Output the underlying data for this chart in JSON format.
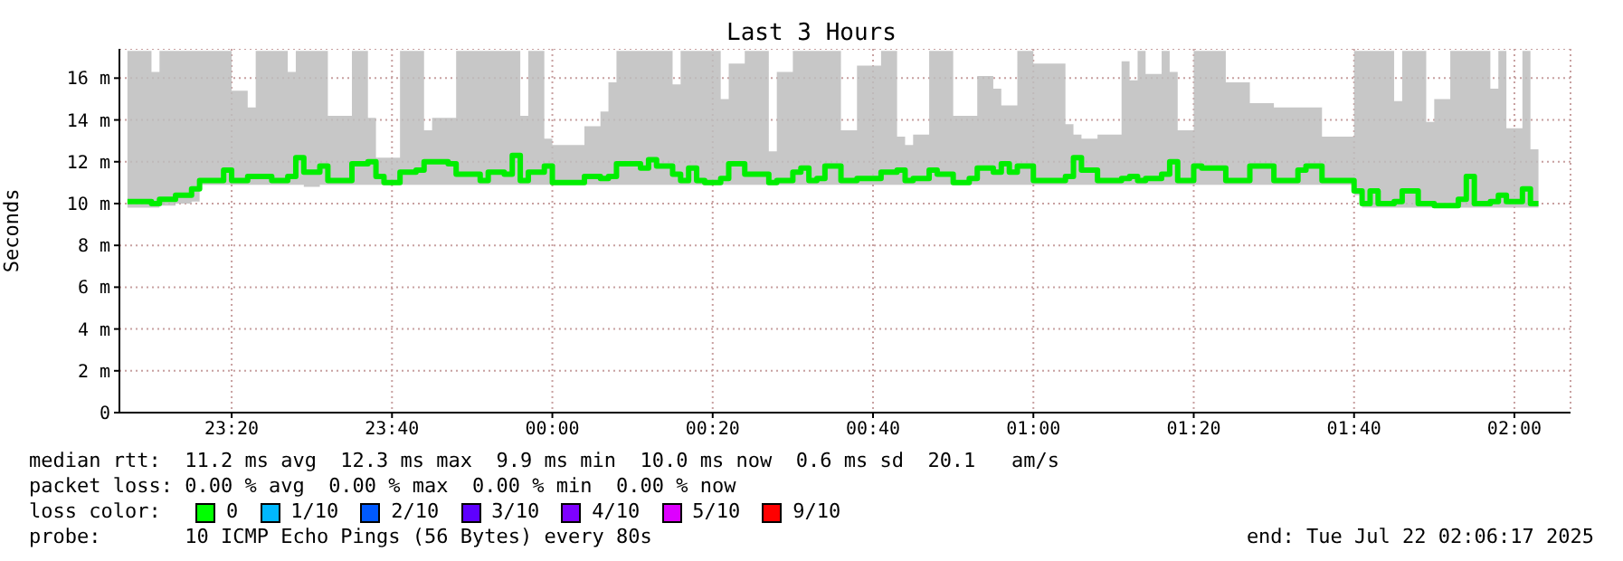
{
  "chart_data": {
    "type": "step",
    "title": "Last 3 Hours",
    "ylabel": "Seconds",
    "xlim": [
      "2025-07-21T23:06",
      "2025-07-22T02:07"
    ],
    "xticks": [
      {
        "value": "2025-07-21T23:20",
        "label": "23:20"
      },
      {
        "value": "2025-07-21T23:40",
        "label": "23:40"
      },
      {
        "value": "2025-07-22T00:00",
        "label": "00:00"
      },
      {
        "value": "2025-07-22T00:20",
        "label": "00:20"
      },
      {
        "value": "2025-07-22T00:40",
        "label": "00:40"
      },
      {
        "value": "2025-07-22T01:00",
        "label": "01:00"
      },
      {
        "value": "2025-07-22T01:20",
        "label": "01:20"
      },
      {
        "value": "2025-07-22T01:40",
        "label": "01:40"
      },
      {
        "value": "2025-07-22T02:00",
        "label": "02:00"
      }
    ],
    "ylim": [
      0,
      17.4
    ],
    "yticks": [
      0,
      {
        "value": 2,
        "label": "2 m"
      },
      {
        "value": 4,
        "label": "4 m"
      },
      {
        "value": 6,
        "label": "6 m"
      },
      {
        "value": 8,
        "label": "8 m"
      },
      {
        "value": 10,
        "label": "10 m"
      },
      {
        "value": 12,
        "label": "12 m"
      },
      {
        "value": 14,
        "label": "14 m"
      },
      {
        "value": 16,
        "label": "16 m"
      }
    ],
    "grid": true,
    "marker": "none",
    "line_style": "solid",
    "x": [
      "2025-07-21T23:07",
      "2025-07-21T23:10",
      "2025-07-21T23:11",
      "2025-07-21T23:13",
      "2025-07-21T23:15",
      "2025-07-21T23:16",
      "2025-07-21T23:19",
      "2025-07-21T23:20",
      "2025-07-21T23:22",
      "2025-07-21T23:23",
      "2025-07-21T23:25",
      "2025-07-21T23:27",
      "2025-07-21T23:28",
      "2025-07-21T23:29",
      "2025-07-21T23:31",
      "2025-07-21T23:32",
      "2025-07-21T23:35",
      "2025-07-21T23:37",
      "2025-07-21T23:38",
      "2025-07-21T23:39",
      "2025-07-21T23:41",
      "2025-07-21T23:43",
      "2025-07-21T23:44",
      "2025-07-21T23:45",
      "2025-07-21T23:47",
      "2025-07-21T23:48",
      "2025-07-21T23:51",
      "2025-07-21T23:52",
      "2025-07-21T23:54",
      "2025-07-21T23:55",
      "2025-07-21T23:56",
      "2025-07-21T23:57",
      "2025-07-21T23:59",
      "2025-07-22T00:00",
      "2025-07-22T00:04",
      "2025-07-22T00:06",
      "2025-07-22T00:07",
      "2025-07-22T00:08",
      "2025-07-22T00:11",
      "2025-07-22T00:12",
      "2025-07-22T00:13",
      "2025-07-22T00:15",
      "2025-07-22T00:16",
      "2025-07-22T00:17",
      "2025-07-22T00:18",
      "2025-07-22T00:19",
      "2025-07-22T00:21",
      "2025-07-22T00:22",
      "2025-07-22T00:24",
      "2025-07-22T00:25",
      "2025-07-22T00:27",
      "2025-07-22T00:28",
      "2025-07-22T00:30",
      "2025-07-22T00:31",
      "2025-07-22T00:32",
      "2025-07-22T00:33",
      "2025-07-22T00:34",
      "2025-07-22T00:36",
      "2025-07-22T00:38",
      "2025-07-22T00:41",
      "2025-07-22T00:43",
      "2025-07-22T00:44",
      "2025-07-22T00:45",
      "2025-07-22T00:47",
      "2025-07-22T00:48",
      "2025-07-22T00:50",
      "2025-07-22T00:52",
      "2025-07-22T00:53",
      "2025-07-22T00:55",
      "2025-07-22T00:56",
      "2025-07-22T00:57",
      "2025-07-22T00:58",
      "2025-07-22T01:00",
      "2025-07-22T01:04",
      "2025-07-22T01:05",
      "2025-07-22T01:06",
      "2025-07-22T01:08",
      "2025-07-22T01:11",
      "2025-07-22T01:12",
      "2025-07-22T01:13",
      "2025-07-22T01:14",
      "2025-07-22T01:16",
      "2025-07-22T01:17",
      "2025-07-22T01:18",
      "2025-07-22T01:20",
      "2025-07-22T01:21",
      "2025-07-22T01:24",
      "2025-07-22T01:27",
      "2025-07-22T01:30",
      "2025-07-22T01:33",
      "2025-07-22T01:34",
      "2025-07-22T01:36",
      "2025-07-22T01:40",
      "2025-07-22T01:41",
      "2025-07-22T01:42",
      "2025-07-22T01:43",
      "2025-07-22T01:45",
      "2025-07-22T01:46",
      "2025-07-22T01:48",
      "2025-07-22T01:49",
      "2025-07-22T01:50",
      "2025-07-22T01:52",
      "2025-07-22T01:53",
      "2025-07-22T01:54",
      "2025-07-22T01:55",
      "2025-07-22T01:57",
      "2025-07-22T01:58",
      "2025-07-22T01:59",
      "2025-07-22T02:01",
      "2025-07-22T02:02",
      "2025-07-22T02:03"
    ],
    "series": [
      {
        "color": "#00ee00",
        "values": [
          10.1,
          10.0,
          10.2,
          10.4,
          10.7,
          11.1,
          11.6,
          11.1,
          11.3,
          11.3,
          11.1,
          11.3,
          12.2,
          11.5,
          11.8,
          11.1,
          11.9,
          12.0,
          11.3,
          11.0,
          11.5,
          11.6,
          12.0,
          12.0,
          11.9,
          11.4,
          11.1,
          11.5,
          11.4,
          12.3,
          11.1,
          11.5,
          11.8,
          11.0,
          11.3,
          11.2,
          11.3,
          11.9,
          11.7,
          12.1,
          11.8,
          11.4,
          11.1,
          11.7,
          11.1,
          11.0,
          11.2,
          11.9,
          11.4,
          11.4,
          11.0,
          11.1,
          11.5,
          11.7,
          11.1,
          11.2,
          11.8,
          11.1,
          11.2,
          11.5,
          11.6,
          11.1,
          11.2,
          11.6,
          11.4,
          11.0,
          11.2,
          11.7,
          11.5,
          11.9,
          11.5,
          11.8,
          11.1,
          11.3,
          12.2,
          11.6,
          11.1,
          11.2,
          11.3,
          11.1,
          11.2,
          11.4,
          12.0,
          11.1,
          11.8,
          11.7,
          11.1,
          11.8,
          11.1,
          11.6,
          11.8,
          11.1,
          10.6,
          10.0,
          10.6,
          10.0,
          10.1,
          10.6,
          10.0,
          10.0,
          9.9,
          9.9,
          10.2,
          11.3,
          10.0,
          10.1,
          10.4,
          10.1,
          10.7,
          10.0,
          10.0
        ],
        "lower": [
          9.8,
          9.8,
          9.9,
          10.0,
          10.1,
          10.9,
          10.9,
          10.9,
          10.9,
          10.9,
          10.9,
          10.9,
          10.9,
          10.8,
          10.9,
          10.9,
          10.9,
          10.9,
          10.9,
          10.9,
          10.9,
          10.9,
          10.9,
          10.9,
          10.9,
          10.9,
          10.9,
          10.9,
          10.9,
          10.9,
          10.9,
          10.9,
          10.9,
          10.9,
          10.9,
          10.9,
          10.9,
          10.9,
          10.9,
          10.9,
          10.9,
          10.9,
          10.9,
          10.9,
          10.9,
          10.9,
          10.9,
          10.9,
          10.9,
          10.9,
          10.9,
          10.9,
          10.9,
          10.9,
          10.9,
          10.9,
          10.9,
          10.9,
          10.9,
          10.9,
          10.9,
          10.9,
          10.9,
          10.9,
          10.9,
          10.9,
          10.9,
          10.9,
          10.9,
          10.9,
          10.9,
          10.9,
          10.9,
          10.9,
          10.9,
          10.9,
          10.9,
          10.9,
          10.9,
          10.9,
          10.9,
          10.9,
          10.9,
          10.9,
          10.9,
          10.9,
          10.9,
          10.9,
          10.9,
          10.9,
          10.9,
          10.9,
          10.4,
          9.8,
          9.8,
          9.8,
          9.8,
          9.8,
          9.8,
          9.8,
          9.8,
          9.8,
          9.8,
          9.8,
          9.8,
          9.8,
          9.8,
          9.8,
          9.8,
          9.8,
          9.8
        ],
        "upper": [
          17.3,
          16.3,
          17.3,
          17.3,
          17.3,
          17.3,
          17.3,
          15.4,
          14.6,
          17.3,
          17.3,
          16.3,
          17.3,
          17.3,
          17.3,
          14.2,
          17.3,
          14.1,
          12.2,
          12.2,
          17.3,
          17.3,
          13.5,
          14.1,
          14.1,
          17.3,
          17.3,
          17.3,
          17.3,
          17.3,
          14.2,
          17.3,
          13.1,
          12.8,
          13.7,
          14.4,
          15.8,
          17.3,
          17.3,
          17.3,
          17.3,
          15.7,
          17.3,
          17.3,
          17.3,
          17.3,
          15.0,
          16.7,
          17.3,
          17.3,
          12.5,
          16.3,
          17.3,
          17.3,
          17.3,
          17.3,
          17.3,
          13.5,
          16.6,
          17.3,
          13.2,
          12.8,
          13.3,
          17.3,
          17.3,
          14.2,
          14.2,
          16.1,
          15.5,
          14.7,
          14.7,
          17.3,
          16.7,
          13.8,
          13.3,
          13.1,
          13.3,
          16.8,
          15.9,
          17.3,
          16.2,
          17.3,
          16.3,
          13.5,
          17.3,
          17.3,
          15.8,
          14.8,
          14.6,
          14.6,
          14.6,
          13.2,
          17.3,
          17.3,
          17.3,
          17.3,
          14.9,
          17.3,
          17.3,
          13.9,
          15.0,
          17.3,
          17.3,
          17.3,
          17.3,
          15.5,
          17.3,
          13.6,
          17.3,
          12.6,
          12.6
        ]
      }
    ],
    "annotations": [
      "median rtt:  11.2 ms avg  12.3 ms max  9.9 ms min  10.0 ms now  0.6 ms sd  20.1   am/s",
      "packet loss: 0.00 % avg  0.00 % max  0.00 % min  0.00 % now",
      "loss color:",
      "0",
      "1/10",
      "2/10",
      "3/10",
      "4/10",
      "5/10",
      "9/10",
      "probe:       10 ICMP Echo Pings (56 Bytes) every 80s",
      "end: Tue Jul 22 02:06:17 2025"
    ]
  }
}
